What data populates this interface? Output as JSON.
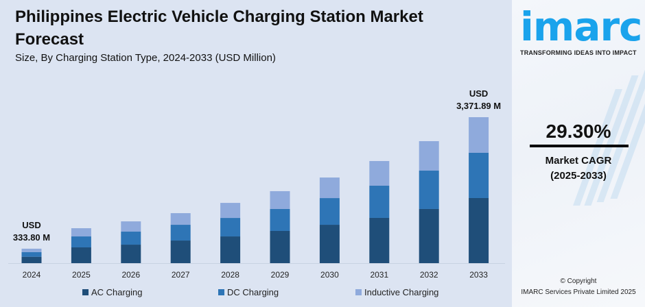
{
  "header": {
    "title": "Philippines Electric Vehicle Charging Station Market Forecast",
    "subtitle": "Size, By Charging Station Type, 2024-2033 (USD Million)"
  },
  "brand": {
    "logo_text": "imarc",
    "tagline": "TRANSFORMING IDEAS INTO IMPACT",
    "color": "#1aa3ec"
  },
  "cagr": {
    "value": "29.30%",
    "label": "Market CAGR",
    "period": "(2025-2033)"
  },
  "footer": {
    "copyright": "© Copyright",
    "company": "IMARC Services Private Limited 2025"
  },
  "chart_data": {
    "type": "bar",
    "stacked": true,
    "categories": [
      "2024",
      "2025",
      "2026",
      "2027",
      "2028",
      "2029",
      "2030",
      "2031",
      "2032",
      "2033"
    ],
    "series": [
      {
        "name": "AC Charging",
        "color": "#1f4e79",
        "values": [
          147.5,
          364,
          427,
          522,
          617,
          744,
          886,
          1045,
          1251,
          1504
        ]
      },
      {
        "name": "DC Charging",
        "color": "#2e75b6",
        "values": [
          108.7,
          253,
          301,
          364,
          427,
          507,
          617,
          744,
          886,
          1045
        ]
      },
      {
        "name": "Inductive Charging",
        "color": "#8faadc",
        "values": [
          77.6,
          190,
          237,
          269,
          348,
          412,
          475,
          570,
          681,
          823
        ]
      }
    ],
    "annotations": [
      {
        "category": "2024",
        "line1": "USD",
        "line2": "333.80 M"
      },
      {
        "category": "2033",
        "line1": "USD",
        "line2": "3,371.89 M"
      }
    ],
    "legend_position": "bottom",
    "grid": false,
    "ylim": [
      0,
      3400
    ]
  }
}
